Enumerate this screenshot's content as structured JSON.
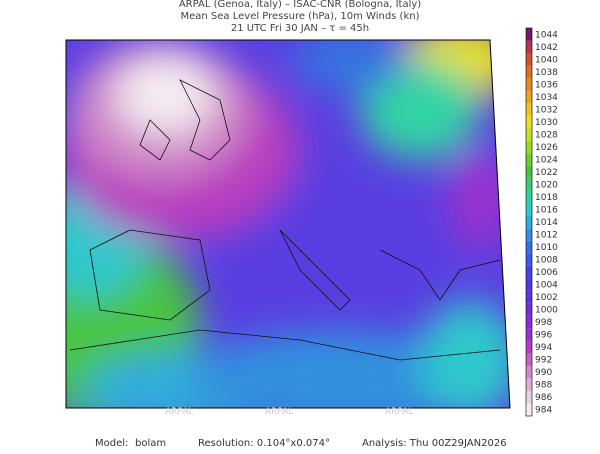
{
  "header": {
    "line1": "ARPAL (Genoa, Italy)  –  ISAC-CNR (Bologna, Italy)",
    "line2": "Mean Sea Level Pressure (hPa), 10m Winds (kn)",
    "line3": "21 UTC Fri 30 JAN  –  τ = 45h"
  },
  "watermark": "ARPAL",
  "colorbar": {
    "values": [
      984,
      986,
      988,
      990,
      992,
      994,
      996,
      998,
      1000,
      1002,
      1004,
      1006,
      1008,
      1010,
      1012,
      1014,
      1016,
      1018,
      1020,
      1022,
      1024,
      1026,
      1028,
      1030,
      1032,
      1034,
      1036,
      1038,
      1040,
      1042,
      1044
    ],
    "colors": [
      "#f4ecf2",
      "#ead0e4",
      "#dcb0d6",
      "#d088c8",
      "#c860c0",
      "#b83cc0",
      "#9c30cc",
      "#8430d4",
      "#7030d8",
      "#6034dc",
      "#5038e0",
      "#4444e4",
      "#3a5ae4",
      "#3474e0",
      "#3290de",
      "#30acdc",
      "#2ec8cc",
      "#30d4a4",
      "#36cc74",
      "#48c440",
      "#70cc30",
      "#a0d828",
      "#c8e024",
      "#e8e020",
      "#f0c420",
      "#eca420",
      "#e68a24",
      "#de6e2c",
      "#d05034",
      "#b83450",
      "#6a1c6e"
    ]
  },
  "footer": {
    "model_label": "Model:",
    "model": "bolam",
    "resolution": "Resolution: 0.104°x0.074°",
    "analysis": "Analysis: Thu  00Z29JAN2026"
  }
}
